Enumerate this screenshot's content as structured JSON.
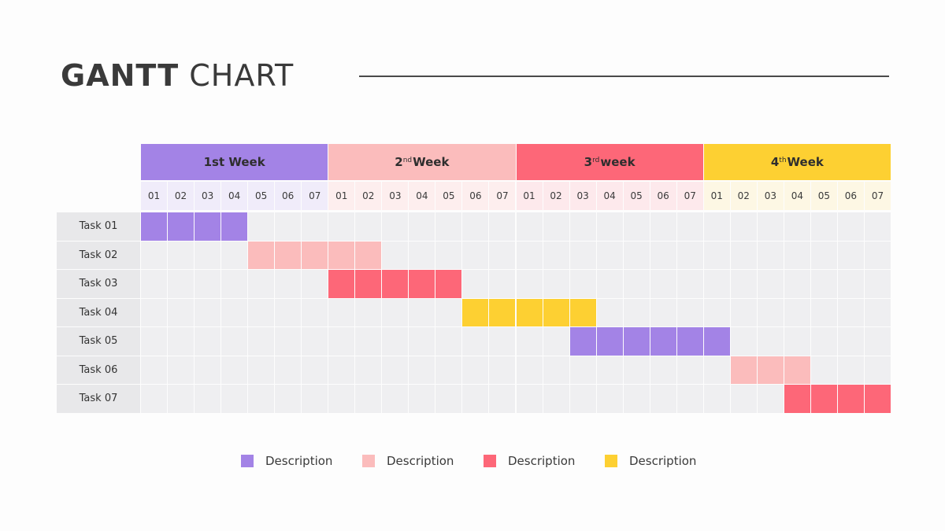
{
  "title": {
    "bold": "GANTT",
    "light": "CHART"
  },
  "colors": {
    "purple": "#a383e6",
    "light_pink": "#fbbcbc",
    "red": "#fd6778",
    "yellow": "#fdd032",
    "grid": "#efeff1",
    "task_label_bg": "#e8e8ea"
  },
  "chart_data": {
    "type": "gantt",
    "weeks": [
      {
        "label": "1st Week",
        "prefix": "1",
        "sup": "",
        "suffix": "st Week",
        "color": "#a383e6",
        "day_bg": "#f0ecfa"
      },
      {
        "label": "2nd Week",
        "prefix": "2",
        "sup": "nd",
        "suffix": " Week",
        "color": "#fbbcbc",
        "day_bg": "#fdeeee"
      },
      {
        "label": "3rd week",
        "prefix": "3",
        "sup": "rd",
        "suffix": " week",
        "color": "#fd6778",
        "day_bg": "#fde9ec"
      },
      {
        "label": "4th Week",
        "prefix": "4",
        "sup": "th",
        "suffix": " Week",
        "color": "#fdd032",
        "day_bg": "#fdf7e4"
      }
    ],
    "days": [
      "01",
      "02",
      "03",
      "04",
      "05",
      "06",
      "07"
    ],
    "tasks": [
      {
        "name": "Task 01",
        "start": 0,
        "end": 3,
        "color": "#a383e6"
      },
      {
        "name": "Task 02",
        "start": 4,
        "end": 8,
        "color": "#fbbcbc"
      },
      {
        "name": "Task 03",
        "start": 7,
        "end": 11,
        "color": "#fd6778"
      },
      {
        "name": "Task 04",
        "start": 12,
        "end": 16,
        "color": "#fdd032"
      },
      {
        "name": "Task 05",
        "start": 16,
        "end": 21,
        "color": "#a383e6"
      },
      {
        "name": "Task 06",
        "start": 22,
        "end": 24,
        "color": "#fbbcbc"
      },
      {
        "name": "Task 07",
        "start": 24,
        "end": 27,
        "color": "#fd6778"
      }
    ],
    "legend": [
      {
        "label": "Description",
        "color": "#a383e6"
      },
      {
        "label": "Description",
        "color": "#fbbcbc"
      },
      {
        "label": "Description",
        "color": "#fd6778"
      },
      {
        "label": "Description",
        "color": "#fdd032"
      }
    ]
  }
}
